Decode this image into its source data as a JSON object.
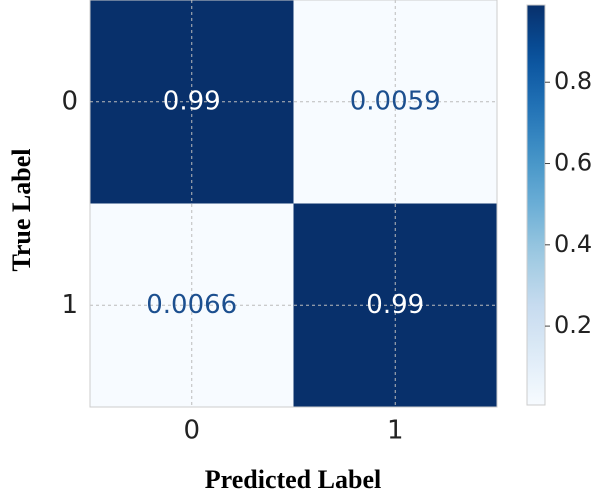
{
  "chart_data": {
    "type": "heatmap",
    "x_label": "Predicted Label",
    "y_label": "True Label",
    "x_categories": [
      "0",
      "1"
    ],
    "y_categories": [
      "0",
      "1"
    ],
    "values": [
      [
        0.99,
        0.0059
      ],
      [
        0.0066,
        0.99
      ]
    ],
    "colormap": "Blues",
    "clim": [
      0.0059,
      0.99
    ],
    "cticks": [
      0.2,
      0.4,
      0.6,
      0.8
    ],
    "grid": true
  }
}
